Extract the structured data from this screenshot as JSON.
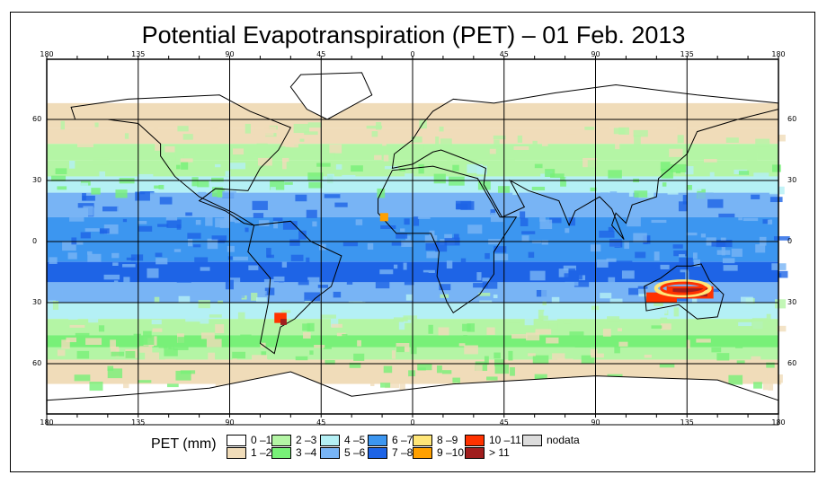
{
  "title": "Potential Evapotranspiration (PET) – 01 Feb. 2013",
  "axes": {
    "longitude_labels": [
      "180",
      "135",
      "90",
      "45",
      "0",
      "45",
      "90",
      "135",
      "180"
    ],
    "latitude_labels": [
      "60",
      "30",
      "0",
      "30",
      "60"
    ]
  },
  "legend": {
    "title": "PET (mm)",
    "items": [
      {
        "label": "0 –1",
        "color": "#ffffff"
      },
      {
        "label": "1 –2",
        "color": "#f0dcb9"
      },
      {
        "label": "2 –3",
        "color": "#b4f5a5"
      },
      {
        "label": "3 –4",
        "color": "#78f078"
      },
      {
        "label": "4 –5",
        "color": "#b4f0f5"
      },
      {
        "label": "5 –6",
        "color": "#78b4f5"
      },
      {
        "label": "6 –7",
        "color": "#3c96f0"
      },
      {
        "label": "7 –8",
        "color": "#1e64e6"
      },
      {
        "label": "8 –9",
        "color": "#ffe678"
      },
      {
        "label": "9 –10",
        "color": "#ffa000"
      },
      {
        "label": "10 –11",
        "color": "#ff3200"
      },
      {
        "label": "> 11",
        "color": "#a01e1e"
      },
      {
        "label": "nodata",
        "color": "#dcdcdc"
      }
    ]
  }
}
